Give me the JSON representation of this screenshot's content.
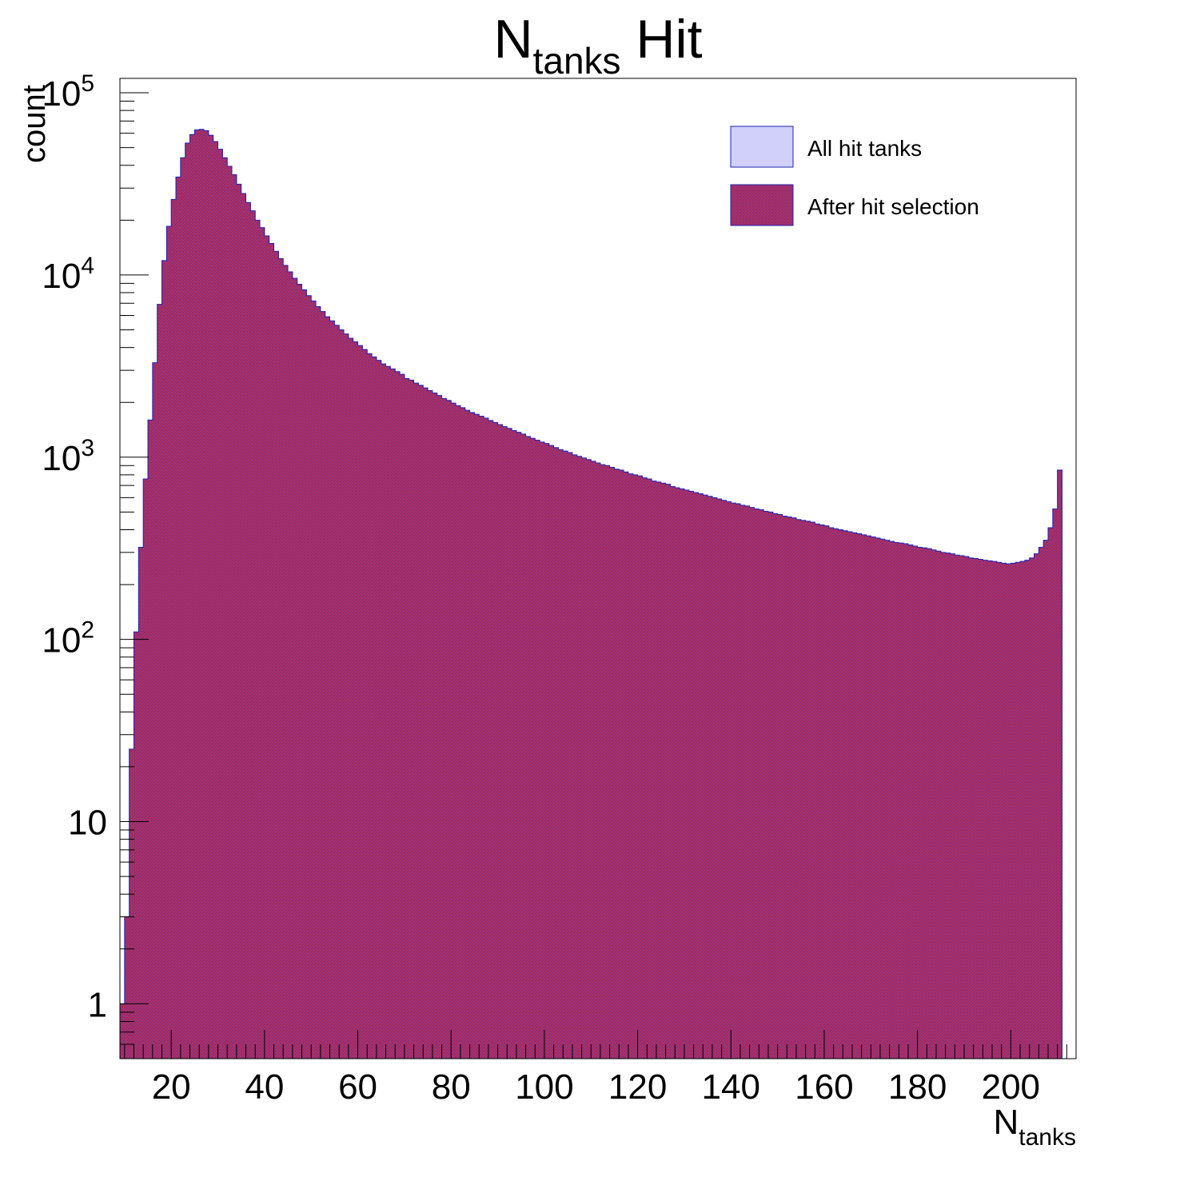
{
  "chart_data": {
    "type": "bar",
    "title": {
      "main": "N",
      "sub": "tanks",
      "rest": " Hit"
    },
    "xlabel": {
      "main": "N",
      "sub": "tanks"
    },
    "ylabel": "count",
    "xlim": [
      9,
      214
    ],
    "ylim": [
      0.5,
      120000
    ],
    "yscale": "log",
    "bin_start": 9,
    "bin_width": 1,
    "x_ticks": [
      "20",
      "40",
      "60",
      "80",
      "100",
      "120",
      "140",
      "160",
      "180",
      "200"
    ],
    "y_ticks": [
      {
        "value": 1,
        "base": "1",
        "exp": ""
      },
      {
        "value": 10,
        "base": "10",
        "exp": ""
      },
      {
        "value": 100,
        "base": "10",
        "exp": "2"
      },
      {
        "value": 1000,
        "base": "10",
        "exp": "3"
      },
      {
        "value": 10000,
        "base": "10",
        "exp": "4"
      },
      {
        "value": 100000,
        "base": "10",
        "exp": "5"
      }
    ],
    "grid": false,
    "legend_position": "top-right",
    "series": [
      {
        "name": "All hit tanks",
        "fill": "#d0d0fa",
        "line": "#2020b0",
        "values": [
          1,
          3,
          25,
          110,
          320,
          760,
          1600,
          3300,
          6900,
          12000,
          18500,
          26000,
          34500,
          44000,
          53000,
          59000,
          62500,
          63000,
          62000,
          58500,
          54000,
          49000,
          44000,
          39500,
          35500,
          31500,
          28000,
          25000,
          22500,
          20000,
          18200,
          16400,
          14900,
          13500,
          12300,
          11300,
          10400,
          9600,
          8900,
          8300,
          7700,
          7200,
          6700,
          6300,
          5900,
          5600,
          5300,
          5000,
          4750,
          4500,
          4300,
          4100,
          3900,
          3700,
          3550,
          3400,
          3250,
          3150,
          3050,
          2950,
          2850,
          2700,
          2650,
          2550,
          2480,
          2400,
          2320,
          2250,
          2180,
          2100,
          2050,
          1980,
          1920,
          1870,
          1810,
          1760,
          1720,
          1680,
          1640,
          1590,
          1550,
          1510,
          1470,
          1440,
          1400,
          1370,
          1340,
          1300,
          1270,
          1240,
          1210,
          1190,
          1160,
          1130,
          1100,
          1080,
          1060,
          1030,
          1010,
          990,
          970,
          950,
          930,
          910,
          900,
          880,
          860,
          850,
          830,
          810,
          800,
          790,
          770,
          760,
          740,
          730,
          720,
          710,
          690,
          680,
          670,
          660,
          650,
          640,
          630,
          620,
          610,
          600,
          590,
          580,
          570,
          560,
          555,
          545,
          540,
          530,
          520,
          515,
          505,
          500,
          490,
          485,
          475,
          470,
          465,
          455,
          450,
          445,
          440,
          430,
          425,
          420,
          410,
          405,
          400,
          395,
          390,
          385,
          380,
          375,
          370,
          365,
          360,
          355,
          350,
          345,
          340,
          338,
          335,
          330,
          325,
          320,
          318,
          315,
          310,
          305,
          300,
          298,
          295,
          290,
          288,
          285,
          280,
          278,
          275,
          272,
          270,
          268,
          265,
          262,
          260,
          262,
          265,
          268,
          272,
          280,
          295,
          320,
          350,
          410,
          520,
          850
        ]
      },
      {
        "name": "After hit selection",
        "fill": "#9c1f5a",
        "line": "#2020b0",
        "values": [
          1,
          3,
          25,
          110,
          320,
          760,
          1600,
          3300,
          6900,
          12000,
          18500,
          26000,
          34500,
          44000,
          53000,
          59000,
          62500,
          63000,
          62000,
          58500,
          54000,
          49000,
          44000,
          39500,
          35500,
          31500,
          28000,
          25000,
          22500,
          20000,
          18200,
          16400,
          14900,
          13500,
          12300,
          11300,
          10400,
          9600,
          8900,
          8300,
          7700,
          7200,
          6700,
          6300,
          5900,
          5600,
          5300,
          5000,
          4750,
          4500,
          4300,
          4100,
          3900,
          3700,
          3550,
          3400,
          3250,
          3150,
          3050,
          2950,
          2850,
          2700,
          2650,
          2550,
          2480,
          2400,
          2320,
          2250,
          2180,
          2100,
          2050,
          1980,
          1920,
          1870,
          1810,
          1760,
          1720,
          1680,
          1640,
          1590,
          1550,
          1510,
          1470,
          1440,
          1400,
          1370,
          1340,
          1300,
          1270,
          1240,
          1210,
          1190,
          1160,
          1130,
          1100,
          1080,
          1060,
          1030,
          1010,
          990,
          970,
          950,
          930,
          910,
          900,
          880,
          860,
          850,
          830,
          810,
          800,
          790,
          770,
          760,
          740,
          730,
          720,
          710,
          690,
          680,
          670,
          660,
          650,
          640,
          630,
          620,
          610,
          600,
          590,
          580,
          570,
          560,
          555,
          545,
          540,
          530,
          520,
          515,
          505,
          500,
          490,
          485,
          475,
          470,
          465,
          455,
          450,
          445,
          440,
          430,
          425,
          420,
          410,
          405,
          400,
          395,
          390,
          385,
          380,
          375,
          370,
          365,
          360,
          355,
          350,
          345,
          340,
          338,
          335,
          330,
          325,
          320,
          318,
          315,
          310,
          305,
          300,
          298,
          295,
          290,
          288,
          285,
          280,
          278,
          275,
          272,
          270,
          268,
          265,
          262,
          260,
          262,
          265,
          268,
          272,
          280,
          295,
          320,
          350,
          410,
          520,
          850
        ]
      }
    ]
  }
}
